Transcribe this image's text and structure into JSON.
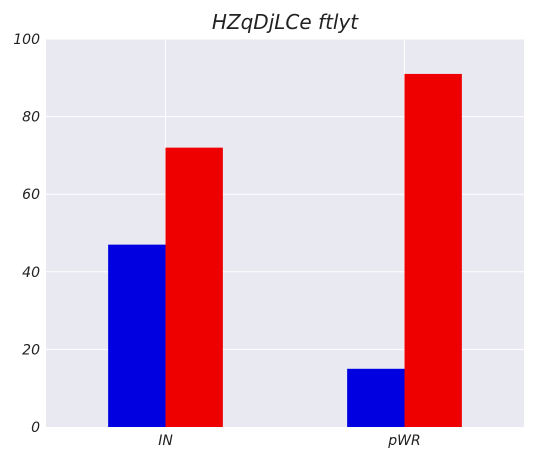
{
  "chart_data": {
    "type": "bar",
    "title": "HZqDjLCe ftlyt",
    "xlabel": "",
    "ylabel": "",
    "categories": [
      "IN",
      "pWR"
    ],
    "series": [
      {
        "color": "#0000e0",
        "values": [
          47,
          15
        ]
      },
      {
        "color": "#ee0000",
        "values": [
          72,
          91
        ]
      }
    ],
    "ylim": [
      0,
      100
    ],
    "yticks": [
      0,
      20,
      40,
      60,
      80,
      100
    ],
    "grid": true,
    "background": "#e9e9f1",
    "legend": "none"
  }
}
